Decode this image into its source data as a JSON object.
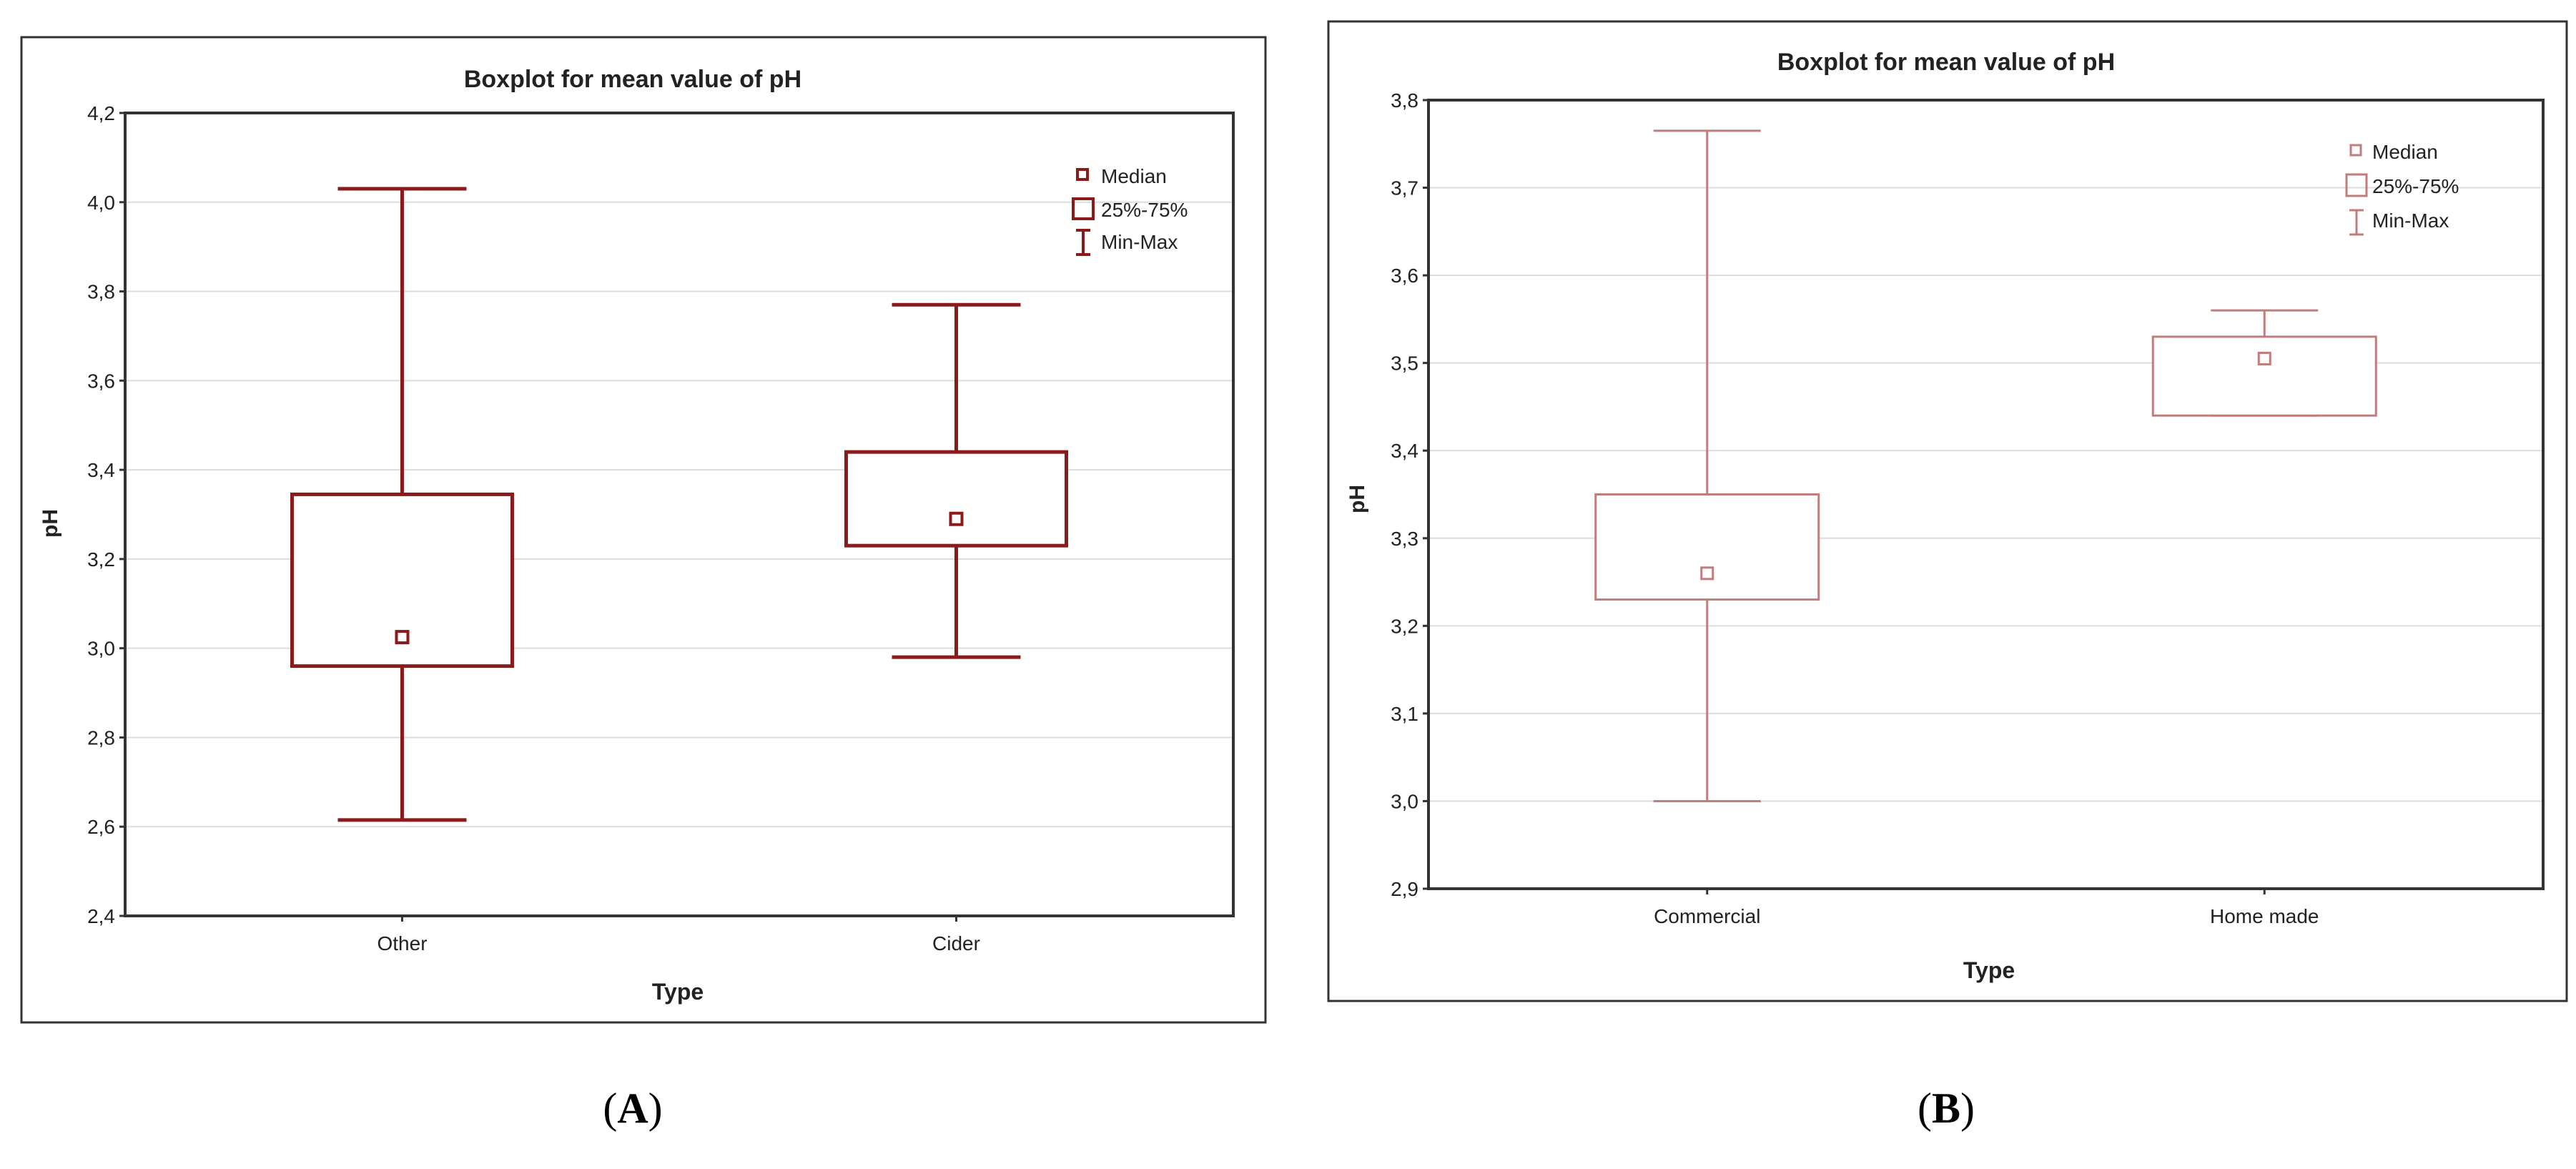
{
  "colors": {
    "panel_a_stroke": "#8B1A1A",
    "panel_b_stroke": "#C27C7C",
    "grid": "#dcdcdc",
    "frame": "#333333",
    "axis_text": "#222222"
  },
  "chart_data": [
    {
      "panel_label_open": "(",
      "panel_label": "A",
      "panel_label_close": ")",
      "type": "boxplot",
      "title": "Boxplot for mean value of pH",
      "xlabel": "Type",
      "ylabel": "pH",
      "ylim": [
        2.4,
        4.2
      ],
      "yticks": [
        2.4,
        2.6,
        2.8,
        3.0,
        3.2,
        3.4,
        3.6,
        3.8,
        4.0,
        4.2
      ],
      "yticklabels": [
        "2,4",
        "2,6",
        "2,8",
        "3,0",
        "3,2",
        "3,4",
        "3,6",
        "3,8",
        "4,0",
        "4,2"
      ],
      "grid": true,
      "legend_position": "top-right",
      "legend": [
        "Median",
        "25%-75%",
        "Min-Max"
      ],
      "categories": [
        "Other",
        "Cider"
      ],
      "boxes": [
        {
          "name": "Other",
          "min": 2.615,
          "q1": 2.96,
          "median": 3.025,
          "q3": 3.345,
          "max": 4.03
        },
        {
          "name": "Cider",
          "min": 2.98,
          "q1": 3.23,
          "median": 3.29,
          "q3": 3.44,
          "max": 3.77
        }
      ]
    },
    {
      "panel_label_open": "(",
      "panel_label": "B",
      "panel_label_close": ")",
      "type": "boxplot",
      "title": "Boxplot for mean value of pH",
      "xlabel": "Type",
      "ylabel": "pH",
      "ylim": [
        2.9,
        3.8
      ],
      "yticks": [
        2.9,
        3.0,
        3.1,
        3.2,
        3.3,
        3.4,
        3.5,
        3.6,
        3.7,
        3.8
      ],
      "yticklabels": [
        "2,9",
        "3,0",
        "3,1",
        "3,2",
        "3,3",
        "3,4",
        "3,5",
        "3,6",
        "3,7",
        "3,8"
      ],
      "grid": true,
      "legend_position": "top-right",
      "legend": [
        "Median",
        "25%-75%",
        "Min-Max"
      ],
      "categories": [
        "Commercial",
        "Home made"
      ],
      "boxes": [
        {
          "name": "Commercial",
          "min": 3.0,
          "q1": 3.23,
          "median": 3.26,
          "q3": 3.35,
          "max": 3.765
        },
        {
          "name": "Home made",
          "min": 3.44,
          "q1": 3.44,
          "median": 3.505,
          "q3": 3.53,
          "max": 3.56
        }
      ]
    }
  ]
}
